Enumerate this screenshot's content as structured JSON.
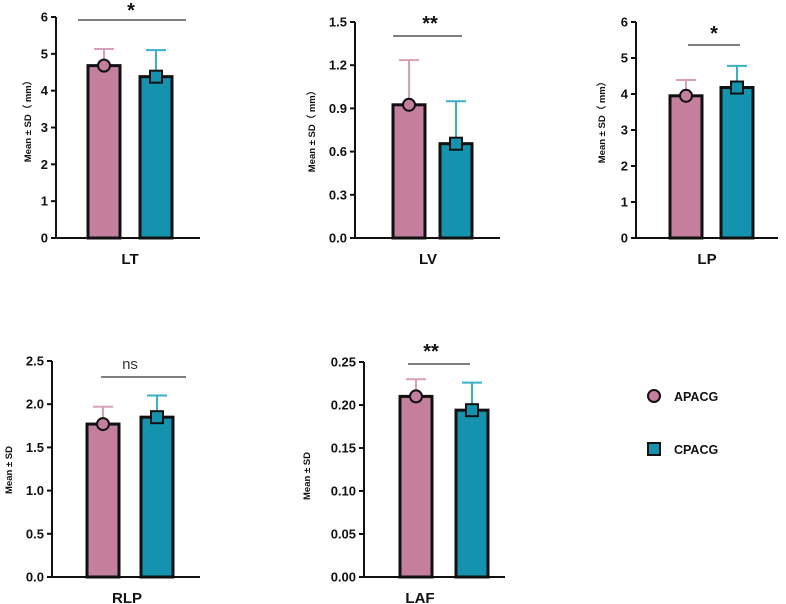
{
  "chart_data": [
    {
      "type": "bar",
      "title": "LT",
      "xlabel": "LT",
      "ylabel": "Mean ± SD（ mm）",
      "ylim": [
        0,
        6
      ],
      "yticks": [
        "0",
        "1",
        "2",
        "3",
        "4",
        "5",
        "6"
      ],
      "significance": "*",
      "series": [
        {
          "name": "APACG",
          "mean": 4.68,
          "sd": 0.45
        },
        {
          "name": "CPACG",
          "mean": 4.38,
          "sd": 0.72
        }
      ]
    },
    {
      "type": "bar",
      "title": "LV",
      "xlabel": "LV",
      "ylabel": "Mean ± SD（ mm）",
      "ylim": [
        0,
        1.5
      ],
      "yticks": [
        "0.0",
        "0.3",
        "0.6",
        "0.9",
        "1.2",
        "1.5"
      ],
      "significance": "**",
      "series": [
        {
          "name": "APACG",
          "mean": 0.925,
          "sd": 0.31
        },
        {
          "name": "CPACG",
          "mean": 0.655,
          "sd": 0.295
        }
      ]
    },
    {
      "type": "bar",
      "title": "LP",
      "xlabel": "LP",
      "ylabel": "Mean ± SD（ mm）",
      "ylim": [
        0,
        6
      ],
      "yticks": [
        "0",
        "1",
        "2",
        "3",
        "4",
        "5",
        "6"
      ],
      "significance": "*",
      "series": [
        {
          "name": "APACG",
          "mean": 3.95,
          "sd": 0.44
        },
        {
          "name": "CPACG",
          "mean": 4.18,
          "sd": 0.6
        }
      ]
    },
    {
      "type": "bar",
      "title": "RLP",
      "xlabel": "RLP",
      "ylabel": "Mean ± SD",
      "ylim": [
        0,
        2.5
      ],
      "yticks": [
        "0.0",
        "0.5",
        "1.0",
        "1.5",
        "2.0",
        "2.5"
      ],
      "significance": "ns",
      "series": [
        {
          "name": "APACG",
          "mean": 1.77,
          "sd": 0.2
        },
        {
          "name": "CPACG",
          "mean": 1.85,
          "sd": 0.25
        }
      ]
    },
    {
      "type": "bar",
      "title": "LAF",
      "xlabel": "LAF",
      "ylabel": "Mean ± SD",
      "ylim": [
        0,
        0.25
      ],
      "yticks": [
        "0.00",
        "0.05",
        "0.10",
        "0.15",
        "0.20",
        "0.25"
      ],
      "significance": "**",
      "series": [
        {
          "name": "APACG",
          "mean": 0.21,
          "sd": 0.02
        },
        {
          "name": "CPACG",
          "mean": 0.194,
          "sd": 0.032
        }
      ]
    }
  ],
  "legend": {
    "position": "right",
    "entries": [
      {
        "name": "APACG",
        "marker": "circle",
        "color": "#C47F9E",
        "error_color": "#D8A0B8"
      },
      {
        "name": "CPACG",
        "marker": "square",
        "color": "#1492AE",
        "error_color": "#3AB0C8"
      }
    ]
  },
  "colors": {
    "apacg_fill": "#C47F9E",
    "apacg_error": "#D8A0B8",
    "cpacg_fill": "#1492AE",
    "cpacg_error": "#3AB0C8",
    "axis": "#111111"
  }
}
